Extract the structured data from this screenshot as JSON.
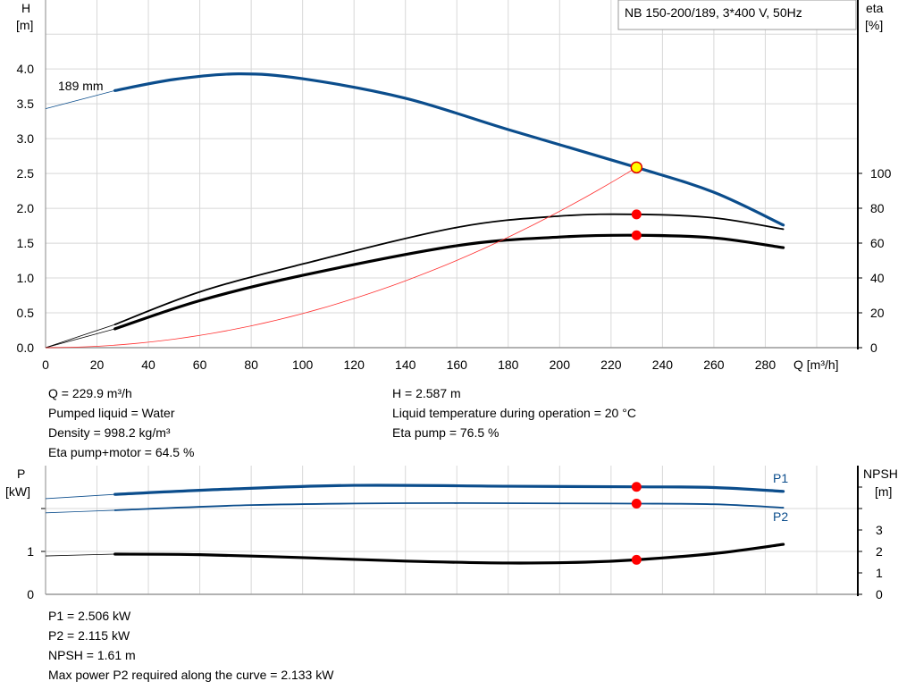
{
  "chart_data": [
    {
      "type": "line",
      "title": "NB 150-200/189, 3*400 V, 50Hz",
      "xlabel": "Q [m³/h]",
      "ylabel_left": [
        "H",
        "[m]"
      ],
      "ylabel_right": [
        "eta",
        "[%]"
      ],
      "xlim": [
        0,
        316
      ],
      "ylim_left": [
        0,
        4.99
      ],
      "ylim_right": [
        0,
        199.5
      ],
      "grid": true,
      "x_ticks": [
        "0",
        "20",
        "40",
        "60",
        "80",
        "100",
        "120",
        "140",
        "160",
        "180",
        "200",
        "220",
        "240",
        "260",
        "280"
      ],
      "y_left_ticks": [
        "0.0",
        "0.5",
        "1.0",
        "1.5",
        "2.0",
        "2.5",
        "3.0",
        "3.5",
        "4.0"
      ],
      "y_right_ticks": [
        "0",
        "20",
        "40",
        "60",
        "80",
        "100"
      ],
      "annotation": "189 mm",
      "series": [
        {
          "key": "H",
          "axis": "left",
          "color": "#0b4d8c",
          "extension": [
            [
              0,
              3.43
            ],
            [
              27,
              3.69
            ]
          ],
          "points": [
            [
              27,
              3.69
            ],
            [
              50,
              3.85
            ],
            [
              75,
              3.93
            ],
            [
              100,
              3.86
            ],
            [
              140,
              3.58
            ],
            [
              180,
              3.13
            ],
            [
              229.9,
              2.587
            ],
            [
              260,
              2.23
            ],
            [
              287,
              1.76
            ]
          ]
        },
        {
          "key": "eta_pump",
          "axis": "right",
          "color": "#000000",
          "extension": [
            [
              0,
              0
            ],
            [
              27,
              13.3
            ]
          ],
          "points": [
            [
              27,
              13.3
            ],
            [
              60,
              32
            ],
            [
              100,
              48
            ],
            [
              160,
              69
            ],
            [
              200,
              75.5
            ],
            [
              229.9,
              76.5
            ],
            [
              260,
              74.5
            ],
            [
              287,
              68
            ]
          ]
        },
        {
          "key": "eta_pump_motor",
          "axis": "right",
          "color": "#000000",
          "extension": [
            [
              0,
              0
            ],
            [
              27,
              10.8
            ]
          ],
          "points": [
            [
              27,
              10.8
            ],
            [
              60,
              27
            ],
            [
              100,
              41.5
            ],
            [
              160,
              58.5
            ],
            [
              200,
              63.5
            ],
            [
              229.9,
              64.5
            ],
            [
              260,
              63
            ],
            [
              287,
              57.4
            ]
          ]
        },
        {
          "key": "system_curve",
          "axis": "left",
          "color": "#ff3030",
          "quadratic_through": [
            229.9,
            2.587
          ]
        }
      ],
      "operating_points": [
        {
          "x": 229.9,
          "y": 2.587,
          "axis": "left",
          "fill": "#ffff00",
          "stroke": "#e00000"
        },
        {
          "x": 229.9,
          "y": 76.5,
          "axis": "right",
          "fill": "#ff0000"
        },
        {
          "x": 229.9,
          "y": 64.5,
          "axis": "right",
          "fill": "#ff0000"
        }
      ]
    },
    {
      "type": "line",
      "ylabel_left": [
        "P",
        "[kW]"
      ],
      "ylabel_right": [
        "NPSH",
        "[m]"
      ],
      "xlim": [
        0,
        316
      ],
      "ylim_left": [
        0,
        3
      ],
      "ylim_right": [
        0,
        6
      ],
      "grid": true,
      "y_left_ticks": [
        "0",
        "1"
      ],
      "y_right_ticks": [
        "0",
        "1",
        "2",
        "3"
      ],
      "series": [
        {
          "name": "P1",
          "axis": "left",
          "color": "#0b4d8c",
          "extension": [
            [
              0,
              2.23
            ],
            [
              27,
              2.33
            ]
          ],
          "points": [
            [
              27,
              2.33
            ],
            [
              70,
              2.45
            ],
            [
              120,
              2.54
            ],
            [
              180,
              2.52
            ],
            [
              229.9,
              2.506
            ],
            [
              260,
              2.49
            ],
            [
              287,
              2.4
            ]
          ]
        },
        {
          "name": "P2",
          "axis": "left",
          "color": "#0b4d8c",
          "extension": [
            [
              0,
              1.9
            ],
            [
              27,
              1.96
            ]
          ],
          "points": [
            [
              27,
              1.96
            ],
            [
              80,
              2.08
            ],
            [
              140,
              2.125
            ],
            [
              200,
              2.12
            ],
            [
              229.9,
              2.115
            ],
            [
              260,
              2.1
            ],
            [
              287,
              2.02
            ]
          ]
        },
        {
          "key": "NPSH",
          "axis": "right",
          "color": "#000000",
          "extension": [
            [
              0,
              1.79
            ],
            [
              27,
              1.875
            ]
          ],
          "points": [
            [
              27,
              1.875
            ],
            [
              60,
              1.85
            ],
            [
              100,
              1.71
            ],
            [
              140,
              1.55
            ],
            [
              180,
              1.46
            ],
            [
              210,
              1.5
            ],
            [
              229.9,
              1.61
            ],
            [
              260,
              1.9
            ],
            [
              287,
              2.33
            ]
          ]
        }
      ],
      "operating_points": [
        {
          "x": 229.9,
          "y": 2.506,
          "axis": "left",
          "fill": "#ff0000"
        },
        {
          "x": 229.9,
          "y": 2.115,
          "axis": "left",
          "fill": "#ff0000"
        },
        {
          "x": 229.9,
          "y": 1.61,
          "axis": "right",
          "fill": "#ff0000"
        }
      ]
    }
  ],
  "info_top_left": [
    "Q = 229.9 m³/h",
    "Pumped liquid = Water",
    "Density = 998.2 kg/m³",
    "Eta pump+motor = 64.5 %"
  ],
  "info_top_right": [
    "H = 2.587 m",
    "Liquid temperature during operation = 20 °C",
    "Eta pump = 76.5 %"
  ],
  "info_bottom": [
    "P1 = 2.506 kW",
    "P2 = 2.115 kW",
    "NPSH = 1.61 m",
    "Max power P2 required along the curve = 2.133 kW"
  ]
}
